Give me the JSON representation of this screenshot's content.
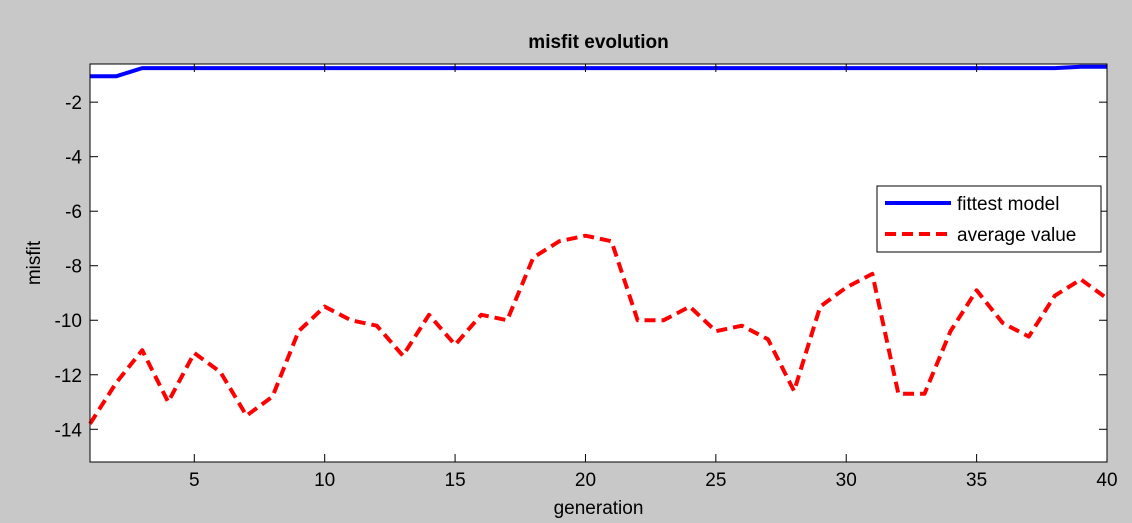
{
  "chart_data": {
    "type": "line",
    "title": "misfit evolution",
    "xlabel": "generation",
    "ylabel": "misfit",
    "xlim": [
      1,
      40
    ],
    "ylim": [
      -15.2,
      -0.6
    ],
    "xticks": [
      5,
      10,
      15,
      20,
      25,
      30,
      35,
      40
    ],
    "yticks": [
      -2,
      -4,
      -6,
      -8,
      -10,
      -12,
      -14
    ],
    "x": [
      1,
      2,
      3,
      4,
      5,
      6,
      7,
      8,
      9,
      10,
      11,
      12,
      13,
      14,
      15,
      16,
      17,
      18,
      19,
      20,
      21,
      22,
      23,
      24,
      25,
      26,
      27,
      28,
      29,
      30,
      31,
      32,
      33,
      34,
      35,
      36,
      37,
      38,
      39,
      40
    ],
    "series": [
      {
        "name": "fittest model",
        "color": "#0000ff",
        "style": "solid",
        "values": [
          -1.05,
          -1.05,
          -0.75,
          -0.75,
          -0.75,
          -0.75,
          -0.75,
          -0.75,
          -0.75,
          -0.75,
          -0.75,
          -0.75,
          -0.75,
          -0.75,
          -0.75,
          -0.75,
          -0.75,
          -0.75,
          -0.75,
          -0.75,
          -0.75,
          -0.75,
          -0.75,
          -0.75,
          -0.75,
          -0.75,
          -0.75,
          -0.75,
          -0.75,
          -0.75,
          -0.75,
          -0.75,
          -0.75,
          -0.75,
          -0.75,
          -0.75,
          -0.75,
          -0.75,
          -0.7,
          -0.7
        ]
      },
      {
        "name": "average value",
        "color": "#ff0000",
        "style": "dashed",
        "values": [
          -13.8,
          -12.3,
          -11.1,
          -13.0,
          -11.2,
          -11.9,
          -13.5,
          -12.8,
          -10.4,
          -9.5,
          -10.0,
          -10.2,
          -11.3,
          -9.8,
          -10.9,
          -9.8,
          -10.0,
          -7.7,
          -7.1,
          -6.9,
          -7.1,
          -10.0,
          -10.0,
          -9.5,
          -10.4,
          -10.2,
          -10.7,
          -12.6,
          -9.5,
          -8.8,
          -8.3,
          -12.7,
          -12.7,
          -10.4,
          -8.9,
          -10.1,
          -10.6,
          -9.1,
          -8.5,
          -9.2
        ]
      }
    ],
    "grid": false,
    "legend_position": "right"
  }
}
